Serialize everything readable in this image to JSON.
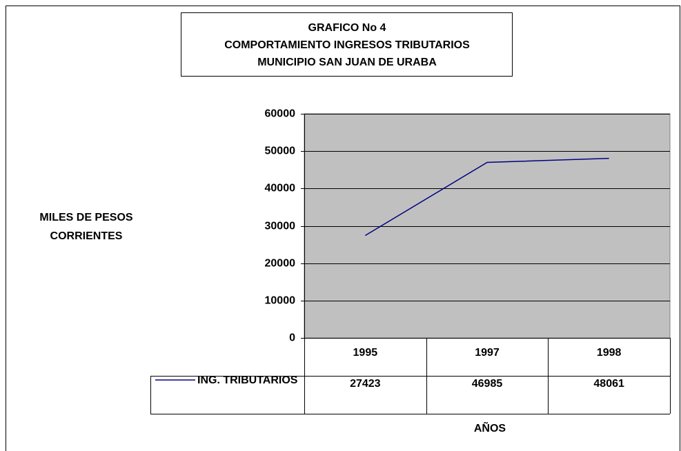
{
  "chart_data": {
    "type": "line",
    "title": [
      "GRAFICO No 4",
      "COMPORTAMIENTO INGRESOS TRIBUTARIOS",
      "MUNICIPIO SAN JUAN DE URABA"
    ],
    "ylabel": "MILES DE PESOS CORRIENTES",
    "xlabel": "AÑOS",
    "categories": [
      "1995",
      "1997",
      "1998"
    ],
    "series": [
      {
        "name": "ING. TRIBUTARIOS",
        "color": "#000080",
        "values": [
          27423,
          46985,
          48061
        ]
      }
    ],
    "ylim": [
      0,
      60000
    ],
    "yticks": [
      0,
      10000,
      20000,
      30000,
      40000,
      50000,
      60000
    ],
    "grid": true,
    "plot_background": "#c0c0c0",
    "data_table": true
  }
}
